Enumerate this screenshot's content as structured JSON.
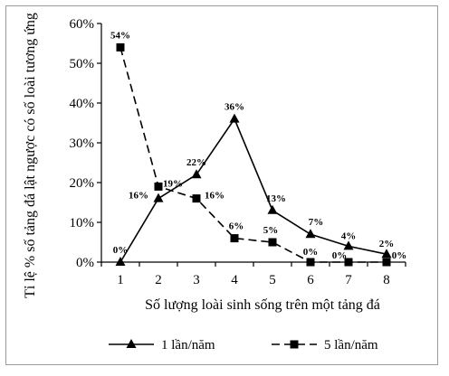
{
  "chart_data": {
    "type": "line",
    "title": "",
    "xlabel": "Số lượng loài sinh sống trên một tảng đá",
    "ylabel": "Tỉ lệ % số tảng đá lật ngược có số loài tương ứng",
    "x": [
      1,
      2,
      3,
      4,
      5,
      6,
      7,
      8
    ],
    "x_tick_labels": [
      "1",
      "2",
      "3",
      "4",
      "5",
      "6",
      "7",
      "8"
    ],
    "ylim": [
      0,
      60
    ],
    "y_ticks": [
      0,
      10,
      20,
      30,
      40,
      50,
      60
    ],
    "y_tick_labels": [
      "0%",
      "10%",
      "20%",
      "30%",
      "40%",
      "50%",
      "60%"
    ],
    "grid": false,
    "legend_position": "bottom",
    "series": [
      {
        "name": "1 lần/năm",
        "marker": "triangle",
        "line_style": "solid",
        "values": [
          0,
          16,
          22,
          36,
          13,
          7,
          4,
          2
        ],
        "labels": [
          "0%",
          "16%",
          "22%",
          "36%",
          "13%",
          "7%",
          "4%",
          "2%"
        ]
      },
      {
        "name": "5 lần/năm",
        "marker": "square",
        "line_style": "dashed",
        "values": [
          54,
          19,
          16,
          6,
          5,
          0,
          0,
          0
        ],
        "labels": [
          "54%",
          "19%",
          "16%",
          "6%",
          "5%",
          "0%",
          "0%",
          "0%"
        ]
      }
    ]
  }
}
